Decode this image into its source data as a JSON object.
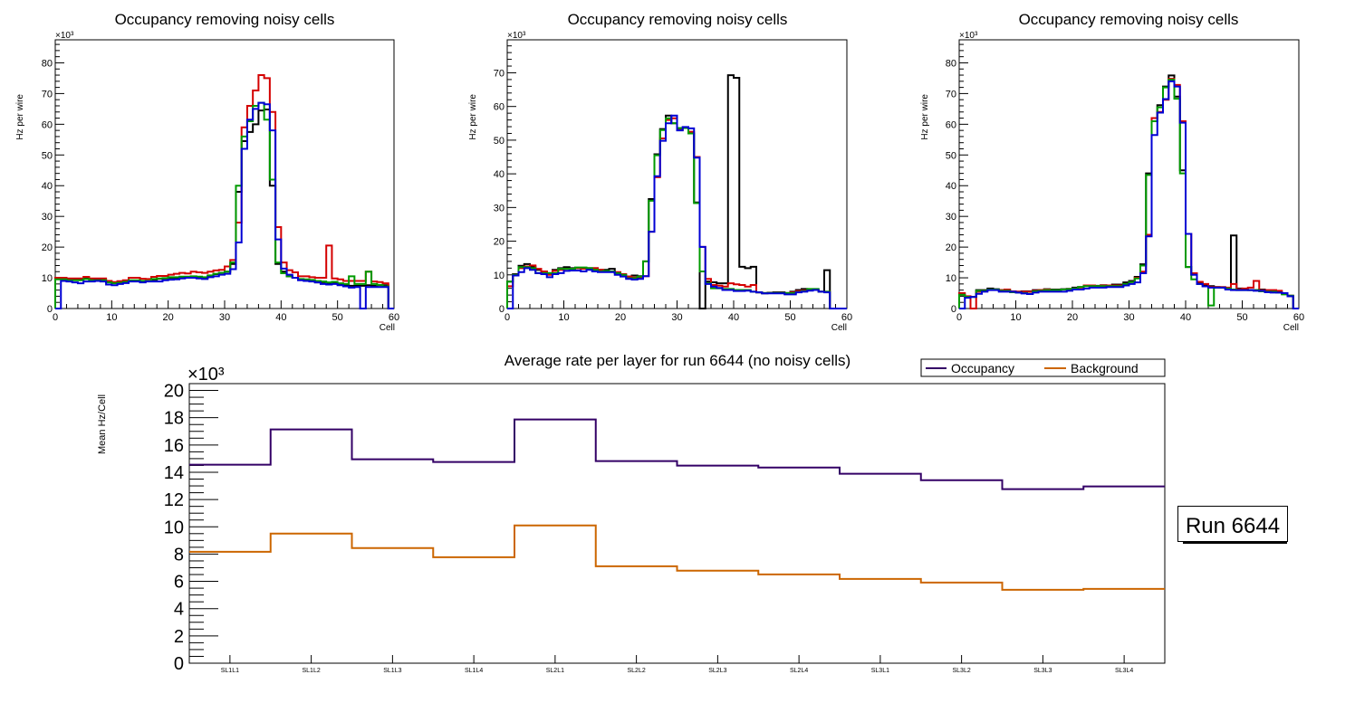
{
  "chart_data": [
    {
      "type": "line",
      "style": "histogram-step",
      "title": "Occupancy removing noisy cells",
      "xlabel": "Cell",
      "ylabel": "Hz per wire",
      "y_multiplier": "×10³",
      "xlim": [
        0,
        60
      ],
      "ylim": [
        0,
        87.5
      ],
      "xticks": [
        0,
        10,
        20,
        30,
        40,
        50,
        60
      ],
      "yticks": [
        0,
        10,
        20,
        30,
        40,
        50,
        60,
        70,
        80
      ],
      "grid": false,
      "series": [
        {
          "name": "black",
          "color": "#000000",
          "values": [
            9.8,
            9.6,
            9.4,
            9.4,
            9.4,
            9.8,
            9.4,
            9.4,
            9.4,
            8.6,
            8.3,
            8.6,
            9,
            9.1,
            9,
            8.8,
            8.9,
            9.4,
            9.7,
            9.8,
            10,
            10,
            10.2,
            10.2,
            10.2,
            10,
            10,
            10.6,
            11.2,
            11.6,
            12,
            14.5,
            38,
            54.5,
            57.5,
            60,
            64.5,
            64.8,
            40,
            14.5,
            12,
            10.5,
            10,
            9.5,
            9.3,
            9,
            8.5,
            8.2,
            8,
            8.2,
            7.8,
            7.5,
            7.4,
            7.4,
            7.4,
            7.6,
            7.4,
            7.6,
            7.6,
            0
          ]
        },
        {
          "name": "red",
          "color": "#d40000",
          "values": [
            10,
            10,
            9.8,
            9.8,
            9.8,
            10.3,
            9.8,
            9.8,
            9.8,
            9,
            8.6,
            8.9,
            9.2,
            10,
            10,
            9.7,
            9.6,
            10.3,
            10.6,
            10.6,
            11,
            11.3,
            11.6,
            11.4,
            12,
            11.8,
            11.6,
            12,
            12.4,
            12.6,
            13.7,
            15.8,
            28,
            59,
            66,
            71,
            76,
            75,
            64,
            26.5,
            15,
            12.5,
            11.8,
            10.5,
            10.5,
            10.2,
            10,
            10,
            20.5,
            9.8,
            9.5,
            9,
            9,
            9,
            9,
            12,
            8.8,
            8.6,
            8.2,
            0
          ]
        },
        {
          "name": "green",
          "color": "#009a00",
          "values": [
            9.5,
            9.5,
            9.2,
            9.2,
            9.2,
            9.6,
            9.2,
            9.2,
            9.2,
            8.5,
            8.2,
            8.4,
            8.7,
            9.2,
            9.2,
            9,
            9,
            9.6,
            9.8,
            9.9,
            10.2,
            10.2,
            10.4,
            10.4,
            10.5,
            10.4,
            10.2,
            10.8,
            11.3,
            11.6,
            12,
            15,
            40,
            56,
            61,
            66,
            67,
            61.5,
            42,
            15,
            11.5,
            10.5,
            10,
            9.6,
            9.5,
            9.3,
            9,
            8.8,
            8.5,
            8.7,
            8.2,
            8,
            10.5,
            8,
            8,
            12,
            8,
            7.7,
            7.2,
            0
          ]
        },
        {
          "name": "blue",
          "color": "#0000d4",
          "values": [
            0,
            9,
            8.8,
            8.5,
            8.2,
            8.8,
            8.8,
            9,
            8.8,
            7.8,
            7.6,
            8,
            8.3,
            8.8,
            8.8,
            8.5,
            8.8,
            8.8,
            8.8,
            9.2,
            9.4,
            9.5,
            9.8,
            10,
            10,
            9.8,
            9.6,
            10.2,
            10.5,
            11,
            11.3,
            12.8,
            21.5,
            52,
            61.5,
            65,
            67,
            66.5,
            58,
            22.5,
            13,
            11,
            10,
            9.2,
            9,
            8.8,
            8.5,
            8,
            7.8,
            8,
            7.6,
            7.2,
            6.8,
            7,
            0,
            7,
            7,
            7,
            7,
            0
          ]
        }
      ]
    },
    {
      "type": "line",
      "style": "histogram-step",
      "title": "Occupancy removing noisy cells",
      "xlabel": "Cell",
      "ylabel": "Hz per wire",
      "y_multiplier": "×10³",
      "xlim": [
        0,
        60
      ],
      "ylim": [
        0,
        79.8
      ],
      "xticks": [
        0,
        10,
        20,
        30,
        40,
        50,
        60
      ],
      "yticks": [
        0,
        10,
        20,
        30,
        40,
        50,
        60,
        70
      ],
      "grid": false,
      "series": [
        {
          "name": "black",
          "color": "#000000",
          "values": [
            8,
            10.2,
            12.7,
            13.2,
            12.5,
            11.5,
            11,
            10.5,
            11.5,
            12,
            12.3,
            12,
            12,
            12,
            12,
            12,
            11.5,
            11.5,
            11.8,
            10.5,
            10,
            9.5,
            9.8,
            9.6,
            14,
            32.5,
            45.8,
            53.3,
            57.3,
            55,
            53.5,
            53.8,
            52,
            31.5,
            0,
            8,
            7.8,
            7.5,
            7.5,
            69.3,
            68.5,
            12.4,
            12,
            12.4,
            4.8,
            4.5,
            4.7,
            4.8,
            4.8,
            4.6,
            5,
            5.5,
            5.8,
            5.5,
            5.5,
            5,
            11.4,
            0,
            0,
            0
          ]
        },
        {
          "name": "red",
          "color": "#d40000",
          "values": [
            6.6,
            10,
            12,
            12.5,
            12.8,
            11.8,
            11,
            10,
            11.2,
            11.5,
            11.8,
            11.8,
            12,
            11.8,
            12,
            12,
            11.5,
            11,
            11,
            10.8,
            10.2,
            9.5,
            9.2,
            9.2,
            9.6,
            22.8,
            39,
            50.5,
            56,
            56.5,
            53,
            53.6,
            52.5,
            45,
            18.3,
            8.8,
            7,
            6.8,
            6.5,
            7.5,
            7.2,
            7,
            6.5,
            7,
            4.8,
            4.6,
            4.6,
            4.6,
            4.6,
            4.4,
            4.8,
            5.2,
            5.4,
            5.5,
            5.5,
            5,
            5,
            0,
            0,
            0
          ]
        },
        {
          "name": "green",
          "color": "#009a00",
          "values": [
            8,
            10,
            12.3,
            12.3,
            12,
            10.5,
            10.5,
            10.5,
            10.5,
            11.8,
            11.8,
            11.8,
            12.2,
            12.2,
            12,
            11.5,
            11,
            11.2,
            11,
            10.5,
            10,
            9,
            9,
            9.5,
            14,
            32,
            45.5,
            53,
            56.5,
            55,
            53.6,
            53.6,
            52,
            31.3,
            11,
            7.5,
            6,
            6,
            5.8,
            5.8,
            5.5,
            5.5,
            5.5,
            5,
            4.8,
            4.6,
            4.6,
            4.6,
            4.6,
            4.6,
            4.6,
            4.9,
            5.2,
            5.8,
            5.8,
            5,
            5,
            0,
            0,
            0
          ]
        },
        {
          "name": "blue",
          "color": "#0000d4",
          "values": [
            0,
            9.8,
            10.8,
            12,
            11.5,
            10.5,
            10.2,
            9.3,
            10.2,
            10.5,
            11.2,
            11.3,
            11.3,
            11,
            11.5,
            11,
            10.8,
            10.8,
            10.8,
            10,
            9.5,
            8.8,
            8.6,
            8.8,
            9.6,
            22.8,
            39.3,
            49.8,
            55,
            57.3,
            52.9,
            53.9,
            53.5,
            44.8,
            18.3,
            7.3,
            6.5,
            6.1,
            5.5,
            5.5,
            5.2,
            5.2,
            5.3,
            5,
            4.8,
            4.5,
            4.5,
            4.5,
            4.5,
            4.2,
            4.2,
            4.8,
            5,
            5.3,
            5.5,
            5,
            4.8,
            0,
            0,
            0
          ]
        }
      ]
    },
    {
      "type": "line",
      "style": "histogram-step",
      "title": "Occupancy removing noisy cells",
      "xlabel": "Cell",
      "ylabel": "Hz per wire",
      "y_multiplier": "×10³",
      "xlim": [
        0,
        60
      ],
      "ylim": [
        0,
        87.5
      ],
      "xticks": [
        0,
        10,
        20,
        30,
        40,
        50,
        60
      ],
      "yticks": [
        0,
        10,
        20,
        30,
        40,
        50,
        60,
        70,
        80
      ],
      "grid": false,
      "series": [
        {
          "name": "black",
          "color": "#000000",
          "values": [
            4.5,
            3.8,
            3.8,
            6,
            6,
            6.5,
            6.3,
            6,
            5.7,
            5.5,
            5.5,
            5.6,
            5.6,
            6,
            6,
            6.3,
            6.2,
            6.2,
            6.3,
            6.4,
            6.8,
            7,
            7.4,
            7.3,
            7.4,
            7.6,
            7.5,
            7.8,
            7.8,
            8.5,
            9,
            10.3,
            14.4,
            44,
            62,
            66.2,
            72.3,
            75.9,
            69,
            45,
            13.5,
            11,
            8.5,
            7.5,
            7.3,
            7,
            6.8,
            6.6,
            23.8,
            6.5,
            6.2,
            6,
            6,
            6.2,
            5.8,
            5.8,
            5.4,
            4.8,
            4,
            0
          ]
        },
        {
          "name": "red",
          "color": "#d40000",
          "values": [
            5,
            4,
            0,
            5.5,
            5.8,
            6.2,
            6.2,
            6,
            6.2,
            5.6,
            5.5,
            5.5,
            5.5,
            5.8,
            6,
            6.2,
            6,
            6,
            6.2,
            6.3,
            6.5,
            6.8,
            7.5,
            7.5,
            7.3,
            7.5,
            7.5,
            7.5,
            7.5,
            8,
            8.6,
            10,
            12,
            24,
            62,
            64,
            68,
            74.8,
            72.8,
            61,
            24.3,
            11.5,
            8.7,
            8,
            7,
            7,
            7,
            6.8,
            8,
            6.3,
            6.5,
            6.8,
            9,
            6,
            6,
            6,
            5.8,
            5,
            4.2,
            0
          ]
        },
        {
          "name": "green",
          "color": "#009a00",
          "values": [
            4.5,
            3.8,
            3.8,
            5.8,
            5.8,
            6.2,
            6.2,
            5.8,
            5.8,
            5.3,
            5.2,
            5,
            4.8,
            5.6,
            5.8,
            6,
            6,
            6,
            6.2,
            6.3,
            6.5,
            7,
            7.3,
            7.3,
            7.3,
            7.3,
            7.3,
            7.3,
            7.3,
            8,
            8.6,
            9.8,
            14,
            43.5,
            61,
            65.5,
            72,
            74.5,
            68.3,
            44,
            13.5,
            9.5,
            8,
            7.2,
            1,
            6.8,
            6.8,
            6.5,
            6.2,
            6,
            6,
            6,
            6,
            5.6,
            5.5,
            5.5,
            5.2,
            4.6,
            4.2,
            0
          ]
        },
        {
          "name": "blue",
          "color": "#0000d4",
          "values": [
            0,
            3.5,
            3.8,
            4.8,
            5.5,
            6,
            6,
            5.5,
            5.5,
            5.5,
            5.2,
            4.9,
            4.7,
            5.2,
            5.5,
            5.5,
            5.5,
            5.5,
            5.5,
            5.8,
            6.2,
            6.2,
            6.5,
            6.8,
            6.8,
            6.8,
            7,
            7,
            7,
            7.5,
            8,
            8.5,
            11.5,
            23.5,
            56.5,
            63.8,
            68.2,
            74,
            72.3,
            60.5,
            24.3,
            11,
            8,
            7.2,
            6.8,
            6.8,
            6.8,
            6.2,
            6,
            6,
            6,
            6,
            5.8,
            5.8,
            5.3,
            5.2,
            5.2,
            5,
            4,
            0
          ]
        }
      ]
    },
    {
      "type": "line",
      "style": "histogram-step",
      "title": "Average rate per layer for run 6644 (no noisy cells)",
      "xlabel": "",
      "ylabel": "Mean Hz/Cell",
      "y_multiplier": "×10³",
      "categories": [
        "SL1L1",
        "SL1L2",
        "SL1L3",
        "SL1L4",
        "SL2L1",
        "SL2L2",
        "SL2L3",
        "SL2L4",
        "SL3L1",
        "SL3L2",
        "SL3L3",
        "SL3L4"
      ],
      "ylim": [
        0,
        20.5
      ],
      "yticks": [
        0,
        2,
        4,
        6,
        8,
        10,
        12,
        14,
        16,
        18,
        20
      ],
      "grid": false,
      "legend_position": "top-right",
      "series": [
        {
          "name": "Occupancy",
          "color": "#330066",
          "values": [
            14.55,
            17.14,
            14.95,
            14.75,
            17.87,
            14.82,
            14.49,
            14.35,
            13.89,
            13.42,
            12.76,
            12.96
          ]
        },
        {
          "name": "Background",
          "color": "#cc6600",
          "values": [
            8.17,
            9.5,
            8.44,
            7.77,
            10.1,
            7.11,
            6.78,
            6.51,
            6.18,
            5.91,
            5.38,
            5.45
          ]
        }
      ],
      "annotation": "Run 6644"
    }
  ]
}
